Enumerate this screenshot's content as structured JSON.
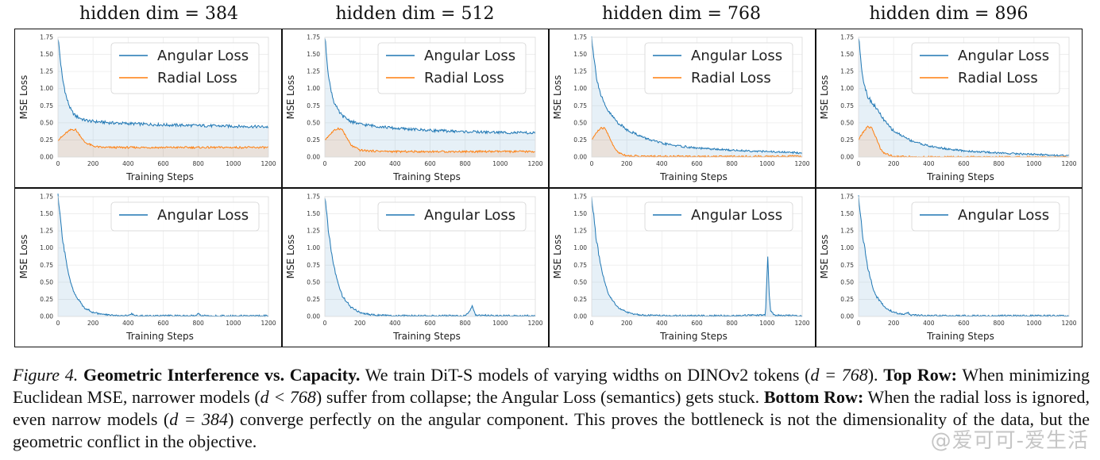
{
  "chart_data": [
    {
      "type": "line",
      "title": "hidden dim = 384",
      "row": "top",
      "xlabel": "Training Steps",
      "ylabel": "MSE Loss",
      "xlim": [
        0,
        1200
      ],
      "ylim": [
        0,
        1.75
      ],
      "xticks": [
        "0",
        "200",
        "400",
        "600",
        "800",
        "1000",
        "1200"
      ],
      "yticks": [
        "0.00",
        "0.25",
        "0.50",
        "0.75",
        "1.00",
        "1.25",
        "1.50",
        "1.75"
      ],
      "legend": [
        "Angular Loss",
        "Radial Loss"
      ],
      "series": [
        {
          "name": "Angular Loss",
          "color": "#1f77b4",
          "x": [
            0,
            25,
            50,
            75,
            100,
            150,
            200,
            300,
            400,
            600,
            800,
            1000,
            1200
          ],
          "values": [
            1.75,
            1.15,
            0.85,
            0.68,
            0.6,
            0.54,
            0.52,
            0.5,
            0.49,
            0.47,
            0.46,
            0.45,
            0.44
          ]
        },
        {
          "name": "Radial Loss",
          "color": "#ff7f0e",
          "x": [
            0,
            25,
            50,
            75,
            100,
            125,
            150,
            200,
            250,
            400,
            800,
            1200
          ],
          "values": [
            0.25,
            0.3,
            0.36,
            0.4,
            0.4,
            0.32,
            0.22,
            0.16,
            0.14,
            0.14,
            0.14,
            0.14
          ]
        }
      ]
    },
    {
      "type": "line",
      "title": "hidden dim = 512",
      "row": "top",
      "xlabel": "Training Steps",
      "ylabel": "MSE Loss",
      "xlim": [
        0,
        1200
      ],
      "ylim": [
        0,
        1.75
      ],
      "xticks": [
        "0",
        "200",
        "400",
        "600",
        "800",
        "1000",
        "1200"
      ],
      "yticks": [
        "0.00",
        "0.25",
        "0.50",
        "0.75",
        "1.00",
        "1.25",
        "1.50",
        "1.75"
      ],
      "legend": [
        "Angular Loss",
        "Radial Loss"
      ],
      "series": [
        {
          "name": "Angular Loss",
          "color": "#1f77b4",
          "x": [
            0,
            25,
            50,
            75,
            100,
            150,
            200,
            300,
            400,
            600,
            800,
            1000,
            1200
          ],
          "values": [
            1.75,
            1.1,
            0.82,
            0.68,
            0.6,
            0.52,
            0.48,
            0.45,
            0.42,
            0.39,
            0.37,
            0.36,
            0.35
          ]
        },
        {
          "name": "Radial Loss",
          "color": "#ff7f0e",
          "x": [
            0,
            25,
            50,
            75,
            100,
            125,
            150,
            200,
            250,
            400,
            800,
            1200
          ],
          "values": [
            0.25,
            0.32,
            0.38,
            0.42,
            0.4,
            0.28,
            0.17,
            0.1,
            0.09,
            0.08,
            0.08,
            0.08
          ]
        }
      ]
    },
    {
      "type": "line",
      "title": "hidden dim = 768",
      "row": "top",
      "xlabel": "Training Steps",
      "ylabel": "MSE Loss",
      "xlim": [
        0,
        1200
      ],
      "ylim": [
        0,
        1.75
      ],
      "xticks": [
        "0",
        "200",
        "400",
        "600",
        "800",
        "1000",
        "1200"
      ],
      "yticks": [
        "0.00",
        "0.25",
        "0.50",
        "0.75",
        "1.00",
        "1.25",
        "1.50",
        "1.75"
      ],
      "legend": [
        "Angular Loss",
        "Radial Loss"
      ],
      "series": [
        {
          "name": "Angular Loss",
          "color": "#1f77b4",
          "x": [
            0,
            25,
            50,
            75,
            100,
            150,
            200,
            300,
            400,
            500,
            600,
            800,
            1000,
            1200
          ],
          "values": [
            1.75,
            1.2,
            0.92,
            0.75,
            0.65,
            0.5,
            0.4,
            0.28,
            0.2,
            0.16,
            0.13,
            0.1,
            0.08,
            0.06
          ]
        },
        {
          "name": "Radial Loss",
          "color": "#ff7f0e",
          "x": [
            0,
            25,
            50,
            75,
            100,
            125,
            150,
            200,
            300,
            1200
          ],
          "values": [
            0.25,
            0.35,
            0.42,
            0.42,
            0.3,
            0.15,
            0.07,
            0.02,
            0.01,
            0.01
          ]
        }
      ]
    },
    {
      "type": "line",
      "title": "hidden dim = 896",
      "row": "top",
      "xlabel": "Training Steps",
      "ylabel": "MSE Loss",
      "xlim": [
        0,
        1200
      ],
      "ylim": [
        0,
        1.75
      ],
      "xticks": [
        "0",
        "200",
        "400",
        "600",
        "800",
        "1000",
        "1200"
      ],
      "yticks": [
        "0.00",
        "0.25",
        "0.50",
        "0.75",
        "1.00",
        "1.25",
        "1.50",
        "1.75"
      ],
      "legend": [
        "Angular Loss",
        "Radial Loss"
      ],
      "series": [
        {
          "name": "Angular Loss",
          "color": "#1f77b4",
          "x": [
            0,
            25,
            50,
            75,
            100,
            150,
            200,
            300,
            400,
            500,
            600,
            800,
            1000,
            1200
          ],
          "values": [
            1.75,
            1.15,
            0.9,
            0.8,
            0.72,
            0.52,
            0.38,
            0.24,
            0.16,
            0.12,
            0.09,
            0.06,
            0.04,
            0.02
          ]
        },
        {
          "name": "Radial Loss",
          "color": "#ff7f0e",
          "x": [
            0,
            25,
            50,
            75,
            100,
            125,
            150,
            200,
            300,
            1200
          ],
          "values": [
            0.25,
            0.36,
            0.44,
            0.43,
            0.28,
            0.12,
            0.05,
            0.01,
            0.0,
            0.0
          ]
        }
      ]
    },
    {
      "type": "line",
      "row": "bottom",
      "xlabel": "Training Steps",
      "ylabel": "MSE Loss",
      "xlim": [
        0,
        1200
      ],
      "ylim": [
        0,
        1.75
      ],
      "xticks": [
        "0",
        "200",
        "400",
        "600",
        "800",
        "1000",
        "1200"
      ],
      "yticks": [
        "0.00",
        "0.25",
        "0.50",
        "0.75",
        "1.00",
        "1.25",
        "1.50",
        "1.75"
      ],
      "legend": [
        "Angular Loss"
      ],
      "series": [
        {
          "name": "Angular Loss",
          "color": "#1f77b4",
          "x": [
            0,
            25,
            50,
            75,
            100,
            150,
            200,
            250,
            300,
            400,
            420,
            440,
            600,
            780,
            800,
            820,
            1000,
            1200
          ],
          "values": [
            1.75,
            1.15,
            0.75,
            0.48,
            0.3,
            0.13,
            0.06,
            0.03,
            0.02,
            0.01,
            0.04,
            0.01,
            0.01,
            0.01,
            0.05,
            0.01,
            0.01,
            0.01
          ]
        }
      ]
    },
    {
      "type": "line",
      "row": "bottom",
      "xlabel": "Training Steps",
      "ylabel": "MSE Loss",
      "xlim": [
        0,
        1200
      ],
      "ylim": [
        0,
        1.75
      ],
      "xticks": [
        "0",
        "200",
        "400",
        "600",
        "800",
        "1000",
        "1200"
      ],
      "yticks": [
        "0.00",
        "0.25",
        "0.50",
        "0.75",
        "1.00",
        "1.25",
        "1.50",
        "1.75"
      ],
      "legend": [
        "Angular Loss"
      ],
      "series": [
        {
          "name": "Angular Loss",
          "color": "#1f77b4",
          "x": [
            0,
            25,
            50,
            75,
            100,
            150,
            200,
            250,
            300,
            400,
            600,
            800,
            820,
            840,
            860,
            1000,
            1200
          ],
          "values": [
            1.75,
            1.15,
            0.75,
            0.48,
            0.3,
            0.13,
            0.06,
            0.03,
            0.02,
            0.01,
            0.01,
            0.01,
            0.05,
            0.15,
            0.02,
            0.01,
            0.01
          ]
        }
      ]
    },
    {
      "type": "line",
      "row": "bottom",
      "xlabel": "Training Steps",
      "ylabel": "MSE Loss",
      "xlim": [
        0,
        1200
      ],
      "ylim": [
        0,
        1.75
      ],
      "xticks": [
        "0",
        "200",
        "400",
        "600",
        "800",
        "1000",
        "1200"
      ],
      "yticks": [
        "0.00",
        "0.25",
        "0.50",
        "0.75",
        "1.00",
        "1.25",
        "1.50",
        "1.75"
      ],
      "legend": [
        "Angular Loss"
      ],
      "series": [
        {
          "name": "Angular Loss",
          "color": "#1f77b4",
          "x": [
            0,
            25,
            50,
            75,
            100,
            150,
            200,
            250,
            300,
            400,
            600,
            800,
            990,
            1000,
            1005,
            1010,
            1020,
            1040,
            1200
          ],
          "values": [
            1.75,
            1.15,
            0.75,
            0.48,
            0.3,
            0.13,
            0.06,
            0.03,
            0.02,
            0.01,
            0.01,
            0.01,
            0.02,
            0.6,
            0.92,
            0.4,
            0.08,
            0.02,
            0.01
          ]
        }
      ]
    },
    {
      "type": "line",
      "row": "bottom",
      "xlabel": "Training Steps",
      "ylabel": "MSE Loss",
      "xlim": [
        0,
        1200
      ],
      "ylim": [
        0,
        1.75
      ],
      "xticks": [
        "0",
        "200",
        "400",
        "600",
        "800",
        "1000",
        "1200"
      ],
      "yticks": [
        "0.00",
        "0.25",
        "0.50",
        "0.75",
        "1.00",
        "1.25",
        "1.50",
        "1.75"
      ],
      "legend": [
        "Angular Loss"
      ],
      "series": [
        {
          "name": "Angular Loss",
          "color": "#1f77b4",
          "x": [
            0,
            25,
            50,
            75,
            100,
            150,
            200,
            250,
            260,
            280,
            300,
            400,
            600,
            800,
            1000,
            1200
          ],
          "values": [
            1.75,
            1.15,
            0.75,
            0.48,
            0.3,
            0.13,
            0.06,
            0.03,
            0.03,
            0.06,
            0.02,
            0.01,
            0.01,
            0.01,
            0.01,
            0.01
          ]
        }
      ]
    }
  ],
  "caption": {
    "figure_label": "Figure 4.",
    "title": "Geometric Interference vs. Capacity.",
    "text1": " We train DiT-S models of varying widths on DINOv2 tokens (",
    "math1": "d = 768",
    "text2": "). ",
    "top_row_label": "Top Row:",
    "text3": " When minimizing Euclidean MSE, narrower models (",
    "math2": "d < 768",
    "text4": ") suffer from collapse; the Angular Loss (semantics) gets stuck. ",
    "bottom_row_label": "Bottom Row:",
    "text5": " When the radial loss is ignored, even narrow models (",
    "math3": "d = 384",
    "text6": ") converge perfectly on the angular component. This proves the bottleneck is not the dimensionality of the data, but the geometric conflict in the objective."
  },
  "watermark": "@爱可可-爱生活"
}
